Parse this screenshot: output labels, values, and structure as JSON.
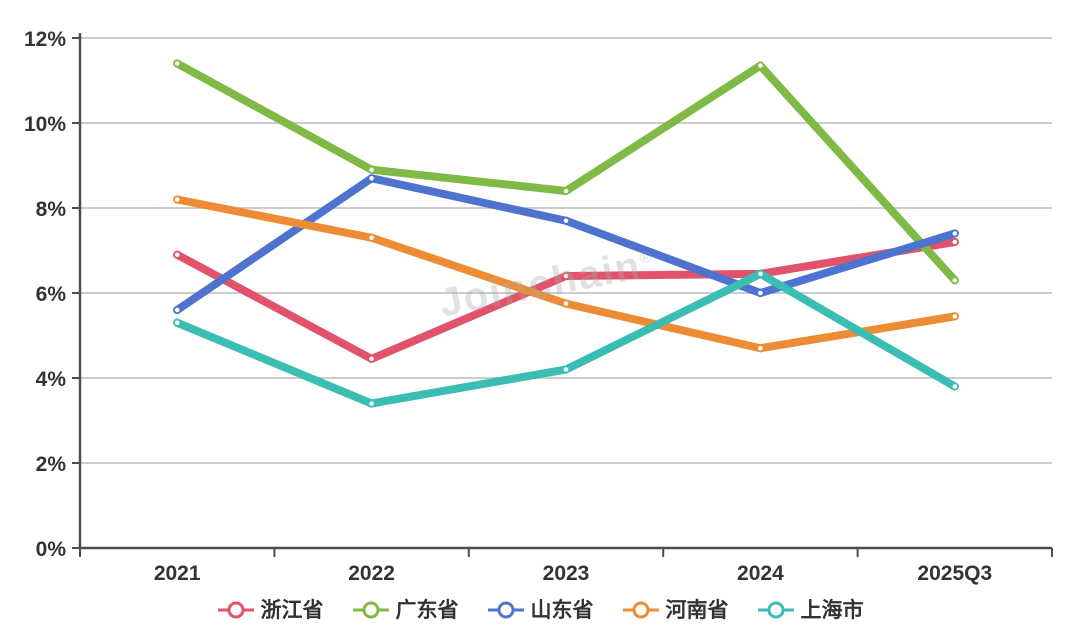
{
  "watermark": {
    "text": "Joinchain",
    "registered": "®"
  },
  "colors": {
    "background": "#ffffff",
    "axis_line": "#4d4d4d",
    "grid_line": "#cccccc",
    "tick_label": "#333333",
    "legend_label": "#333333",
    "watermark": "#b8b8b8"
  },
  "chart_data": {
    "type": "line",
    "categories": [
      "2021",
      "2022",
      "2023",
      "2024",
      "2025Q3"
    ],
    "series": [
      {
        "id": "zhejiang",
        "name": "浙江省",
        "color": "#e1536a",
        "values": [
          6.9,
          4.45,
          6.4,
          6.45,
          7.2
        ]
      },
      {
        "id": "guangdong",
        "name": "广东省",
        "color": "#7eba45",
        "values": [
          11.4,
          8.9,
          8.4,
          11.35,
          6.3
        ]
      },
      {
        "id": "shandong",
        "name": "山东省",
        "color": "#4e73cf",
        "values": [
          5.6,
          8.7,
          7.7,
          6.0,
          7.4
        ]
      },
      {
        "id": "henan",
        "name": "河南省",
        "color": "#ee8c35",
        "values": [
          8.2,
          7.3,
          5.75,
          4.7,
          5.45
        ]
      },
      {
        "id": "shanghai",
        "name": "上海市",
        "color": "#3abdb2",
        "values": [
          5.3,
          3.4,
          4.2,
          6.45,
          3.8
        ]
      }
    ],
    "title": "",
    "xlabel": "",
    "ylabel": "",
    "ylim": [
      0,
      12
    ],
    "ytick_step": 2,
    "ytick_suffix": "%",
    "grid": true,
    "legend_position": "bottom"
  }
}
